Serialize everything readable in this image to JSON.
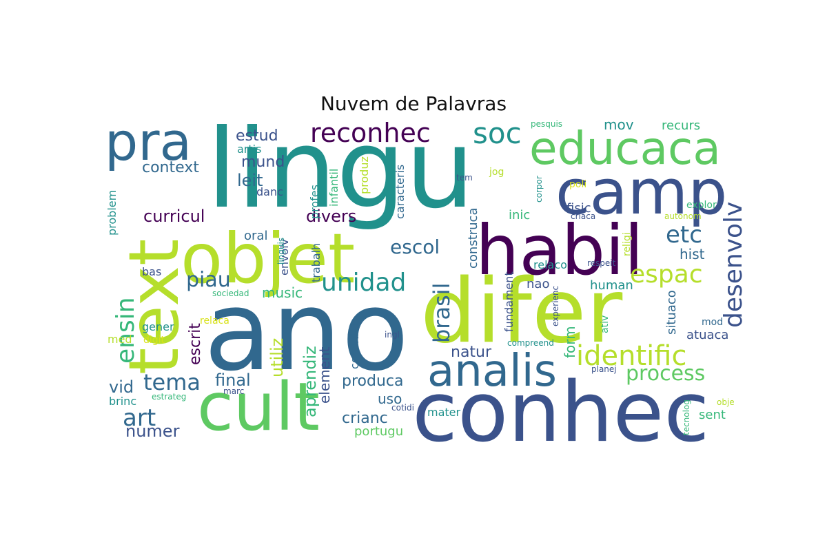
{
  "title": "Nuvem de Palavras",
  "palette": [
    "#440154",
    "#3b528b",
    "#31688e",
    "#21918c",
    "#35b779",
    "#5ec962",
    "#b5de2b",
    "#d8e219"
  ],
  "words": [
    {
      "text": "lingu",
      "color": "#21918c"
    },
    {
      "text": "ano",
      "color": "#31688e"
    },
    {
      "text": "difer",
      "color": "#b5de2b"
    },
    {
      "text": "conhec",
      "color": "#3b528b"
    },
    {
      "text": "habil",
      "color": "#440154"
    },
    {
      "text": "objet",
      "color": "#b5de2b"
    },
    {
      "text": "text",
      "color": "#b5de2b"
    },
    {
      "text": "cult",
      "color": "#5ec962"
    },
    {
      "text": "camp",
      "color": "#3b528b"
    },
    {
      "text": "educaca",
      "color": "#5ec962"
    },
    {
      "text": "pra",
      "color": "#31688e"
    },
    {
      "text": "analis",
      "color": "#31688e"
    },
    {
      "text": "reconhec",
      "color": "#440154"
    },
    {
      "text": "soc",
      "color": "#21918c"
    },
    {
      "text": "identific",
      "color": "#b5de2b"
    },
    {
      "text": "desenvolv",
      "color": "#3b528b"
    },
    {
      "text": "espac",
      "color": "#b5de2b"
    },
    {
      "text": "unidad",
      "color": "#21918c"
    },
    {
      "text": "ensin",
      "color": "#35b779"
    },
    {
      "text": "etc",
      "color": "#31688e"
    },
    {
      "text": "escol",
      "color": "#31688e"
    },
    {
      "text": "brasil",
      "color": "#31688e"
    },
    {
      "text": "tema",
      "color": "#31688e"
    },
    {
      "text": "art",
      "color": "#31688e"
    },
    {
      "text": "piau",
      "color": "#31688e"
    },
    {
      "text": "process",
      "color": "#5ec962"
    },
    {
      "text": "estud",
      "color": "#3b528b"
    },
    {
      "text": "context",
      "color": "#31688e"
    },
    {
      "text": "mund",
      "color": "#3b528b"
    },
    {
      "text": "leit",
      "color": "#31688e"
    },
    {
      "text": "curricul",
      "color": "#440154"
    },
    {
      "text": "divers",
      "color": "#440154"
    },
    {
      "text": "music",
      "color": "#35b779"
    },
    {
      "text": "escrit",
      "color": "#440154"
    },
    {
      "text": "final",
      "color": "#31688e"
    },
    {
      "text": "vid",
      "color": "#31688e"
    },
    {
      "text": "numer",
      "color": "#3b528b"
    },
    {
      "text": "aprendiz",
      "color": "#35b779"
    },
    {
      "text": "utiliz",
      "color": "#b5de2b"
    },
    {
      "text": "element",
      "color": "#3b528b"
    },
    {
      "text": "produca",
      "color": "#31688e"
    },
    {
      "text": "crianc",
      "color": "#31688e"
    },
    {
      "text": "uso",
      "color": "#31688e"
    },
    {
      "text": "portugu",
      "color": "#5ec962"
    },
    {
      "text": "natur",
      "color": "#3b528b"
    },
    {
      "text": "form",
      "color": "#35b779"
    },
    {
      "text": "hist",
      "color": "#31688e"
    },
    {
      "text": "mov",
      "color": "#21918c"
    },
    {
      "text": "recurs",
      "color": "#35b779"
    },
    {
      "text": "inic",
      "color": "#35b779"
    },
    {
      "text": "fisic",
      "color": "#3b528b"
    },
    {
      "text": "atuaca",
      "color": "#3b528b"
    },
    {
      "text": "situaco",
      "color": "#31688e"
    },
    {
      "text": "sent",
      "color": "#35b779"
    },
    {
      "text": "human",
      "color": "#21918c"
    },
    {
      "text": "nao",
      "color": "#3b528b"
    },
    {
      "text": "relaco",
      "color": "#21918c"
    },
    {
      "text": "construca",
      "color": "#31688e"
    },
    {
      "text": "fundament",
      "color": "#3b528b"
    },
    {
      "text": "consider",
      "color": "#31688e"
    },
    {
      "text": "produz",
      "color": "#b5de2b"
    },
    {
      "text": "caracteris",
      "color": "#31688e"
    },
    {
      "text": "infantil",
      "color": "#35b779"
    },
    {
      "text": "profes",
      "color": "#21918c"
    },
    {
      "text": "trabalh",
      "color": "#31688e"
    },
    {
      "text": "envolv",
      "color": "#3b528b"
    },
    {
      "text": "linguis",
      "color": "#21918c"
    },
    {
      "text": "oral",
      "color": "#31688e"
    },
    {
      "text": "danc",
      "color": "#3b528b"
    },
    {
      "text": "artis",
      "color": "#21918c"
    },
    {
      "text": "problem",
      "color": "#21918c"
    },
    {
      "text": "bas",
      "color": "#3b528b"
    },
    {
      "text": "gener",
      "color": "#21918c"
    },
    {
      "text": "relaca",
      "color": "#d8e219"
    },
    {
      "text": "med",
      "color": "#b5de2b"
    },
    {
      "text": "digit",
      "color": "#d8e219"
    },
    {
      "text": "brinc",
      "color": "#21918c"
    },
    {
      "text": "estrateg",
      "color": "#35b779"
    },
    {
      "text": "marc",
      "color": "#3b528b"
    },
    {
      "text": "cotidi",
      "color": "#3b528b"
    },
    {
      "text": "sociedad",
      "color": "#35b779"
    },
    {
      "text": "ingl",
      "color": "#3b528b"
    },
    {
      "text": "mater",
      "color": "#21918c"
    },
    {
      "text": "compreend",
      "color": "#21918c"
    },
    {
      "text": "planej",
      "color": "#3b528b"
    },
    {
      "text": "experienc",
      "color": "#3b528b"
    },
    {
      "text": "ativ",
      "color": "#35b779"
    },
    {
      "text": "mod",
      "color": "#31688e"
    },
    {
      "text": "religi",
      "color": "#b5de2b"
    },
    {
      "text": "respeit",
      "color": "#3b528b"
    },
    {
      "text": "criaca",
      "color": "#3b528b"
    },
    {
      "text": "autonom",
      "color": "#b5de2b"
    },
    {
      "text": "explor",
      "color": "#35b779"
    },
    {
      "text": "poli",
      "color": "#d8e219"
    },
    {
      "text": "corpor",
      "color": "#21918c"
    },
    {
      "text": "tem",
      "color": "#3b528b"
    },
    {
      "text": "jog",
      "color": "#b5de2b"
    },
    {
      "text": "pesquis",
      "color": "#35b779"
    },
    {
      "text": "tecnolog",
      "color": "#35b779"
    },
    {
      "text": "obje",
      "color": "#b5de2b"
    }
  ]
}
